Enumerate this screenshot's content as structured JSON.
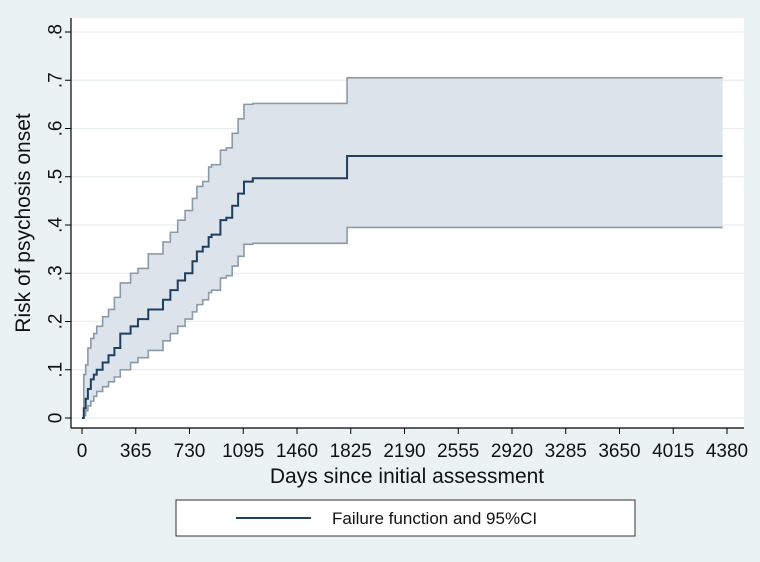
{
  "chart_data": {
    "type": "line",
    "title": "",
    "xlabel": "Days since initial assessment",
    "ylabel": "Risk of psychosis onset",
    "xlim": [
      0,
      4380
    ],
    "ylim": [
      0,
      0.8
    ],
    "x_ticks": [
      0,
      365,
      730,
      1095,
      1460,
      1825,
      2190,
      2555,
      2920,
      3285,
      3650,
      4015,
      4380
    ],
    "x_tick_labels": [
      "0",
      "365",
      "730",
      "1095",
      "1460",
      "1825",
      "2190",
      "2555",
      "2920",
      "3285",
      "3650",
      "4015",
      "4380"
    ],
    "y_ticks": [
      0,
      0.1,
      0.2,
      0.3,
      0.4,
      0.5,
      0.6,
      0.7,
      0.8
    ],
    "y_tick_labels": [
      "0",
      ".1",
      ".2",
      ".3",
      ".4",
      ".5",
      ".6",
      ".7",
      ".8"
    ],
    "grid": "horizontal",
    "legend_position": "bottom",
    "colors": {
      "estimate": "#1f3f5f",
      "ci_band": "#dce3ea",
      "ci_border": "#8c9aa8",
      "background": "#eaf2f3",
      "plot_bg": "#ffffff"
    },
    "series": [
      {
        "name": "Failure function and 95%CI",
        "x": [
          0,
          12,
          25,
          40,
          60,
          80,
          100,
          140,
          180,
          220,
          260,
          330,
          380,
          450,
          550,
          600,
          650,
          700,
          750,
          780,
          820,
          860,
          880,
          940,
          980,
          1020,
          1060,
          1100,
          1160,
          1800,
          4350
        ],
        "y": [
          0,
          0.02,
          0.04,
          0.06,
          0.08,
          0.09,
          0.1,
          0.115,
          0.13,
          0.145,
          0.175,
          0.19,
          0.205,
          0.225,
          0.245,
          0.265,
          0.285,
          0.3,
          0.325,
          0.345,
          0.355,
          0.375,
          0.38,
          0.41,
          0.415,
          0.44,
          0.465,
          0.49,
          0.497,
          0.543,
          0.543
        ]
      },
      {
        "name": "lower",
        "x": [
          0,
          12,
          25,
          40,
          60,
          80,
          100,
          140,
          180,
          220,
          260,
          330,
          380,
          450,
          550,
          600,
          650,
          700,
          750,
          780,
          820,
          860,
          880,
          940,
          980,
          1020,
          1060,
          1100,
          1160,
          1800,
          4350
        ],
        "y": [
          0,
          0.005,
          0.015,
          0.025,
          0.035,
          0.045,
          0.055,
          0.065,
          0.075,
          0.085,
          0.1,
          0.115,
          0.125,
          0.14,
          0.16,
          0.175,
          0.19,
          0.205,
          0.22,
          0.235,
          0.245,
          0.26,
          0.265,
          0.29,
          0.295,
          0.315,
          0.335,
          0.36,
          0.362,
          0.395,
          0.395
        ]
      },
      {
        "name": "upper",
        "x": [
          0,
          12,
          25,
          40,
          60,
          80,
          100,
          140,
          180,
          220,
          260,
          330,
          380,
          450,
          550,
          600,
          650,
          700,
          750,
          780,
          820,
          860,
          880,
          940,
          980,
          1020,
          1060,
          1100,
          1160,
          1800,
          4350
        ],
        "y": [
          0,
          0.09,
          0.11,
          0.145,
          0.165,
          0.175,
          0.19,
          0.21,
          0.225,
          0.25,
          0.28,
          0.3,
          0.31,
          0.34,
          0.365,
          0.385,
          0.41,
          0.43,
          0.455,
          0.48,
          0.49,
          0.52,
          0.525,
          0.555,
          0.56,
          0.59,
          0.62,
          0.65,
          0.652,
          0.705,
          0.705
        ]
      }
    ]
  }
}
